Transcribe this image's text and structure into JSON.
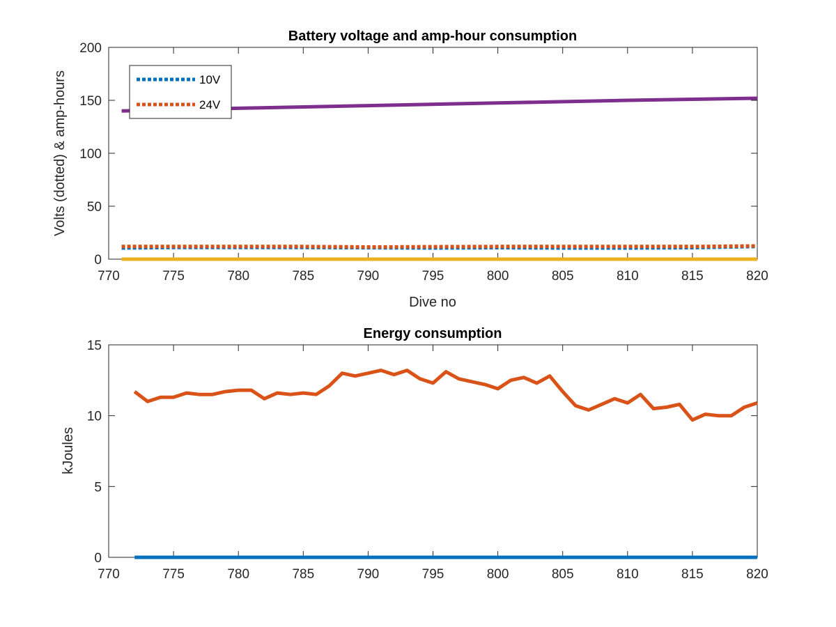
{
  "chart_data": [
    {
      "type": "line",
      "title": "Battery voltage and amp-hour consumption",
      "xlabel": "Dive no",
      "ylabel": "Volts (dotted) & amp-hours",
      "xlim": [
        770,
        820
      ],
      "ylim": [
        0,
        200
      ],
      "xticks": [
        "770",
        "775",
        "780",
        "785",
        "790",
        "795",
        "800",
        "805",
        "810",
        "815",
        "820"
      ],
      "yticks": [
        "0",
        "50",
        "100",
        "150",
        "200"
      ],
      "grid": false,
      "legend_position": "top-left",
      "series": [
        {
          "name": "10V",
          "style": "dotted",
          "color": "#0072BD",
          "points": [
            [
              771,
              10.5
            ],
            [
              775,
              11.0
            ],
            [
              780,
              11.0
            ],
            [
              785,
              11.0
            ],
            [
              790,
              10.8
            ],
            [
              795,
              10.5
            ],
            [
              800,
              10.8
            ],
            [
              805,
              10.5
            ],
            [
              810,
              10.5
            ],
            [
              815,
              10.8
            ],
            [
              820,
              12.0
            ]
          ]
        },
        {
          "name": "24V",
          "style": "dotted",
          "color": "#D95319",
          "points": [
            [
              771,
              12.0
            ],
            [
              775,
              12.0
            ],
            [
              780,
              12.0
            ],
            [
              785,
              12.0
            ],
            [
              790,
              11.5
            ],
            [
              795,
              11.8
            ],
            [
              800,
              12.0
            ],
            [
              805,
              12.0
            ],
            [
              810,
              12.0
            ],
            [
              815,
              12.0
            ],
            [
              820,
              12.5
            ]
          ]
        },
        {
          "style": "solid",
          "color": "#7E2F8E",
          "points": [
            [
              771,
              140
            ],
            [
              780,
              142.5
            ],
            [
              790,
              145
            ],
            [
              800,
              147.5
            ],
            [
              810,
              150
            ],
            [
              820,
              152
            ]
          ]
        },
        {
          "style": "solid",
          "color": "#EDB120",
          "points": [
            [
              771,
              0
            ],
            [
              820,
              0
            ]
          ]
        }
      ]
    },
    {
      "type": "line",
      "title": "Energy consumption",
      "xlabel": "",
      "ylabel": "kJoules",
      "xlim": [
        770,
        820
      ],
      "ylim": [
        0,
        15
      ],
      "xticks": [
        "770",
        "775",
        "780",
        "785",
        "790",
        "795",
        "800",
        "805",
        "810",
        "815",
        "820"
      ],
      "yticks": [
        "0",
        "5",
        "10",
        "15"
      ],
      "grid": false,
      "series": [
        {
          "style": "solid",
          "color": "#D95319",
          "points": [
            [
              772,
              11.7
            ],
            [
              773,
              11.0
            ],
            [
              774,
              11.3
            ],
            [
              775,
              11.3
            ],
            [
              776,
              11.6
            ],
            [
              777,
              11.5
            ],
            [
              778,
              11.5
            ],
            [
              779,
              11.7
            ],
            [
              780,
              11.8
            ],
            [
              781,
              11.8
            ],
            [
              782,
              11.2
            ],
            [
              783,
              11.6
            ],
            [
              784,
              11.5
            ],
            [
              785,
              11.6
            ],
            [
              786,
              11.5
            ],
            [
              787,
              12.1
            ],
            [
              788,
              13.0
            ],
            [
              789,
              12.8
            ],
            [
              790,
              13.0
            ],
            [
              791,
              13.2
            ],
            [
              792,
              12.9
            ],
            [
              793,
              13.2
            ],
            [
              794,
              12.6
            ],
            [
              795,
              12.3
            ],
            [
              796,
              13.1
            ],
            [
              797,
              12.6
            ],
            [
              798,
              12.4
            ],
            [
              799,
              12.2
            ],
            [
              800,
              11.9
            ],
            [
              801,
              12.5
            ],
            [
              802,
              12.7
            ],
            [
              803,
              12.3
            ],
            [
              804,
              12.8
            ],
            [
              805,
              11.7
            ],
            [
              806,
              10.7
            ],
            [
              807,
              10.4
            ],
            [
              808,
              10.8
            ],
            [
              809,
              11.2
            ],
            [
              810,
              10.9
            ],
            [
              811,
              11.5
            ],
            [
              812,
              10.5
            ],
            [
              813,
              10.6
            ],
            [
              814,
              10.8
            ],
            [
              815,
              9.7
            ],
            [
              816,
              10.1
            ],
            [
              817,
              10.0
            ],
            [
              818,
              10.0
            ],
            [
              819,
              10.6
            ],
            [
              820,
              10.9
            ]
          ]
        },
        {
          "style": "solid",
          "color": "#0072BD",
          "points": [
            [
              772,
              0
            ],
            [
              820,
              0
            ]
          ]
        }
      ]
    }
  ]
}
